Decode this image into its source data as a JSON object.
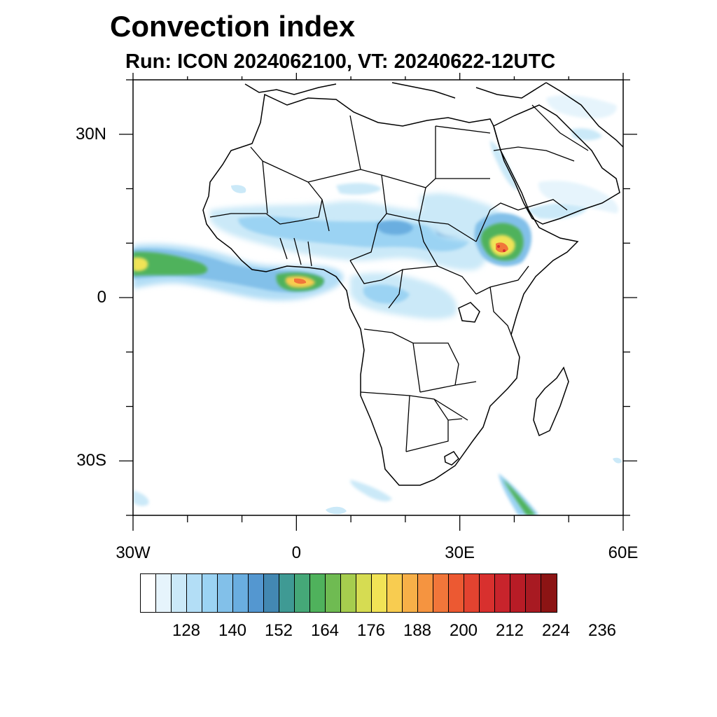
{
  "title": "Convection index",
  "subtitle": "Run: ICON 2024062100,  VT: 20240622-12UTC",
  "axes": {
    "lat_ticks": [
      {
        "value": 30,
        "label": "30N"
      },
      {
        "value": 0,
        "label": "0"
      },
      {
        "value": -30,
        "label": "30S"
      }
    ],
    "lon_ticks": [
      {
        "value": -30,
        "label": "30W"
      },
      {
        "value": 0,
        "label": "0"
      },
      {
        "value": 30,
        "label": "30E"
      },
      {
        "value": 60,
        "label": "60E"
      }
    ],
    "lon_range": [
      -30,
      60
    ],
    "lat_range": [
      -40,
      40
    ]
  },
  "colorbar": {
    "colors": [
      "#ffffff",
      "#e6f4fc",
      "#cbe9f8",
      "#b3def6",
      "#9bd3f3",
      "#82c0e9",
      "#6aaee0",
      "#5497d0",
      "#4388b2",
      "#3f9a94",
      "#45a878",
      "#4fb25c",
      "#6fbb52",
      "#a6cd4e",
      "#d6dc52",
      "#f1e356",
      "#f8cc50",
      "#f7b048",
      "#f59440",
      "#f1763a",
      "#ec5932",
      "#e34330",
      "#d8302e",
      "#c8242c",
      "#b81c26",
      "#a81a22",
      "#8c1414"
    ],
    "labels": [
      "128",
      "140",
      "152",
      "164",
      "176",
      "188",
      "200",
      "212",
      "224",
      "236"
    ]
  },
  "regions": [
    {
      "name": "atlantic-itcz-band",
      "value_level": "176-212"
    },
    {
      "name": "gulf-of-guinea-core",
      "value_level": "200-212"
    },
    {
      "name": "ethiopian-highlands-core",
      "value_level": "188-212"
    },
    {
      "name": "sahel-band",
      "value_level": "128-176"
    },
    {
      "name": "southern-ocean-band",
      "value_level": "140-176"
    }
  ]
}
